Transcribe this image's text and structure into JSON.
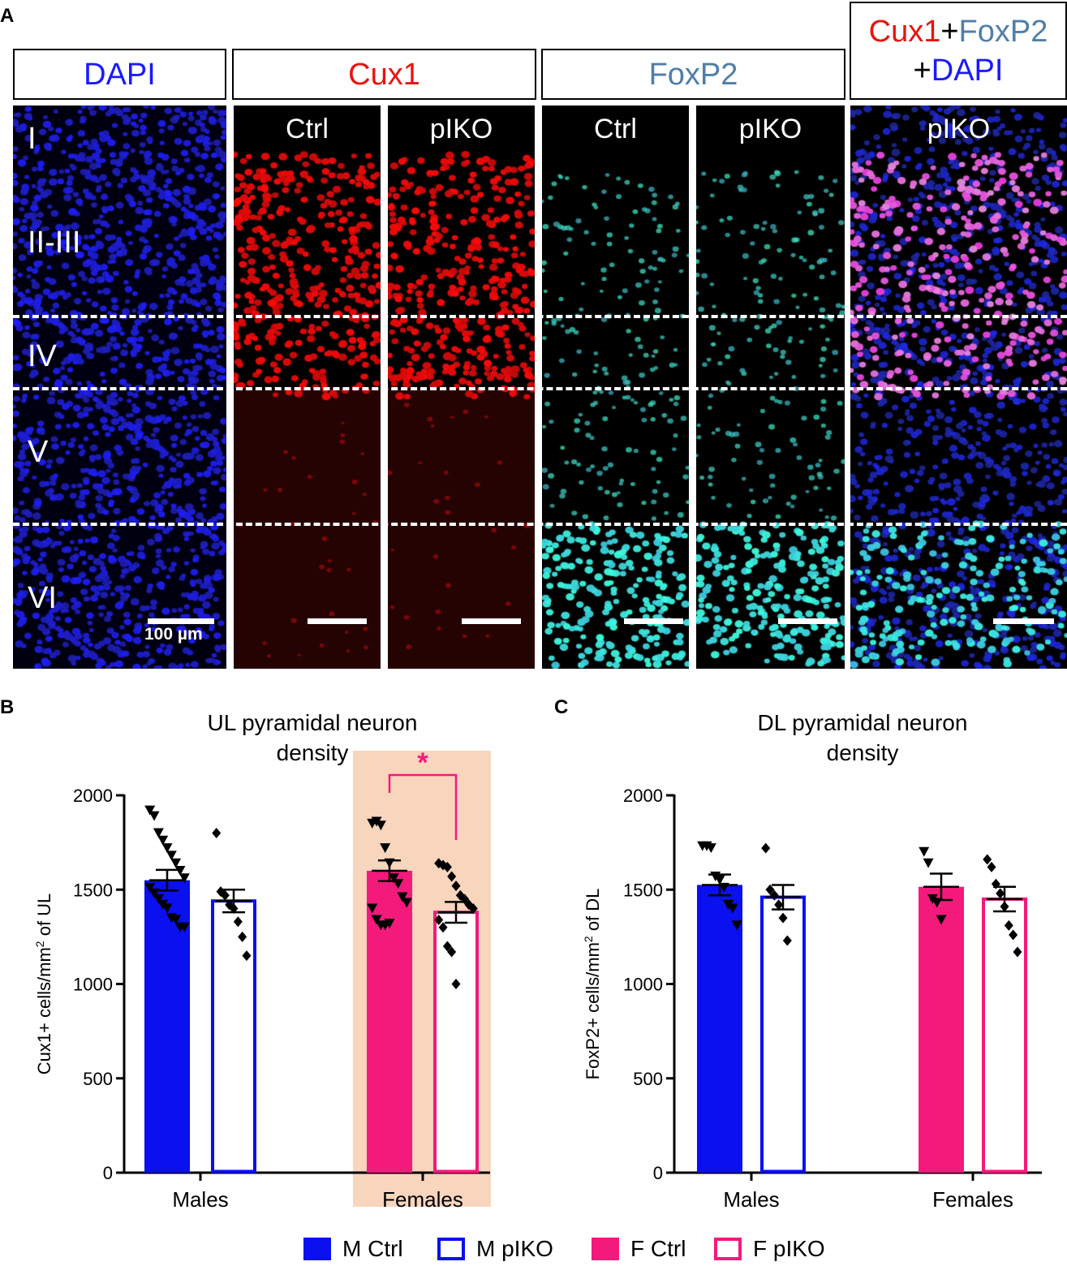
{
  "panel_labels": {
    "a": "A",
    "b": "B",
    "c": "C"
  },
  "headers": {
    "dapi": "DAPI",
    "cux1": "Cux1",
    "foxp2": "FoxP2",
    "merge_cux1": "Cux1",
    "merge_plus1": "+",
    "merge_foxp2": "FoxP2",
    "merge_plus2": "+",
    "merge_dapi": "DAPI"
  },
  "conditions": {
    "cux1_ctrl": "Ctrl",
    "cux1_pko": "pIKO",
    "foxp2_ctrl": "Ctrl",
    "foxp2_pko": "pIKO",
    "merge_pko": "pIKO"
  },
  "layers": [
    "I",
    "II-III",
    "IV",
    "V",
    "VI"
  ],
  "scale_label": "100 µm",
  "colors": {
    "m_ctrl": "#0a10f0",
    "f_ctrl": "#f31a7c",
    "highlight": "#f8d5bd",
    "dapi": "#1a1aff",
    "cux1": "#e8140f",
    "foxp2": "#4f7fa8"
  },
  "chart_data": [
    {
      "type": "bar",
      "title": "UL pyramidal neuron density",
      "ylabel": "Cux1+ cells/mm² of UL",
      "ylim": [
        0,
        2000
      ],
      "yticks": [
        0,
        500,
        1000,
        1500,
        2000
      ],
      "groups": [
        "Males",
        "Females"
      ],
      "highlight_group": "Females",
      "significance": {
        "group": "Females",
        "label": "*"
      },
      "series": [
        {
          "name": "M Ctrl",
          "group": "Males",
          "filled": true,
          "mean": 1550,
          "sem": 55,
          "marker": "triangle-down",
          "points": [
            1920,
            1890,
            1800,
            1760,
            1720,
            1680,
            1640,
            1600,
            1560,
            1510,
            1480,
            1450,
            1420,
            1400,
            1350,
            1340,
            1300,
            1300
          ]
        },
        {
          "name": "M pIKO",
          "group": "Males",
          "filled": false,
          "mean": 1440,
          "sem": 60,
          "marker": "diamond",
          "points": [
            1800,
            1490,
            1470,
            1420,
            1400,
            1330,
            1250,
            1150
          ]
        },
        {
          "name": "F Ctrl",
          "group": "Females",
          "filled": true,
          "mean": 1600,
          "sem": 55,
          "marker": "triangle-down",
          "points": [
            1850,
            1860,
            1840,
            1720,
            1640,
            1560,
            1530,
            1460,
            1430,
            1400,
            1340,
            1310,
            1310,
            1320
          ]
        },
        {
          "name": "F pIKO",
          "group": "Females",
          "filled": false,
          "mean": 1380,
          "sem": 55,
          "marker": "diamond",
          "points": [
            1640,
            1630,
            1620,
            1570,
            1520,
            1470,
            1450,
            1420,
            1400,
            1340,
            1300,
            1200,
            1170,
            1000
          ]
        }
      ]
    },
    {
      "type": "bar",
      "title": "DL pyramidal neuron density",
      "ylabel": "FoxP2+ cells/mm² of DL",
      "ylim": [
        0,
        2000
      ],
      "yticks": [
        0,
        500,
        1000,
        1500,
        2000
      ],
      "groups": [
        "Males",
        "Females"
      ],
      "series": [
        {
          "name": "M Ctrl",
          "group": "Males",
          "filled": true,
          "mean": 1525,
          "sem": 55,
          "marker": "triangle-down",
          "points": [
            1730,
            1730,
            1720,
            1570,
            1550,
            1510,
            1420,
            1400,
            1310
          ]
        },
        {
          "name": "M pIKO",
          "group": "Males",
          "filled": false,
          "mean": 1460,
          "sem": 65,
          "marker": "diamond",
          "points": [
            1720,
            1500,
            1470,
            1420,
            1350,
            1230
          ]
        },
        {
          "name": "F Ctrl",
          "group": "Females",
          "filled": true,
          "mean": 1515,
          "sem": 70,
          "marker": "triangle-down",
          "points": [
            1700,
            1640,
            1450,
            1430,
            1340
          ]
        },
        {
          "name": "F pIKO",
          "group": "Females",
          "filled": false,
          "mean": 1450,
          "sem": 65,
          "marker": "diamond",
          "points": [
            1660,
            1620,
            1530,
            1480,
            1410,
            1310,
            1260,
            1170
          ]
        }
      ]
    }
  ],
  "legend": [
    {
      "label": "M Ctrl",
      "color": "#0a10f0",
      "filled": true
    },
    {
      "label": "M pIKO",
      "color": "#0a10f0",
      "filled": false
    },
    {
      "label": "F Ctrl",
      "color": "#f31a7c",
      "filled": true
    },
    {
      "label": "F pIKO",
      "color": "#f31a7c",
      "filled": false
    }
  ]
}
